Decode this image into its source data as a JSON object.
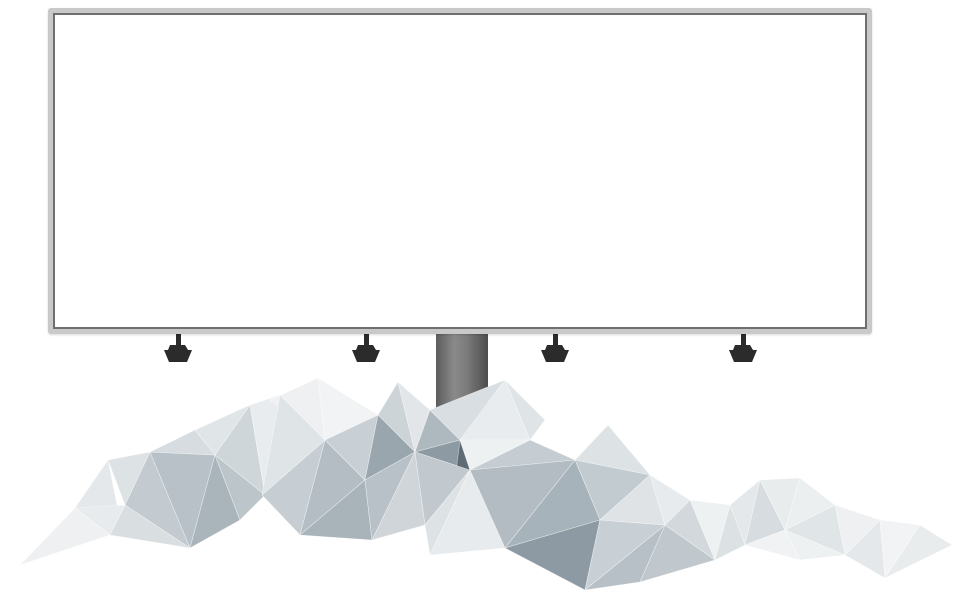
{
  "scene": {
    "description_items": [
      "billboard",
      "support-pole",
      "spotlights",
      "low-poly-rocks"
    ],
    "colors": {
      "frame": "#c9c9c9",
      "frame_inner": "#6f6f6f",
      "face": "#ffffff",
      "pole": "#6e6e6e",
      "lamp": "#2b2b2b"
    },
    "lamp_count": 4
  }
}
